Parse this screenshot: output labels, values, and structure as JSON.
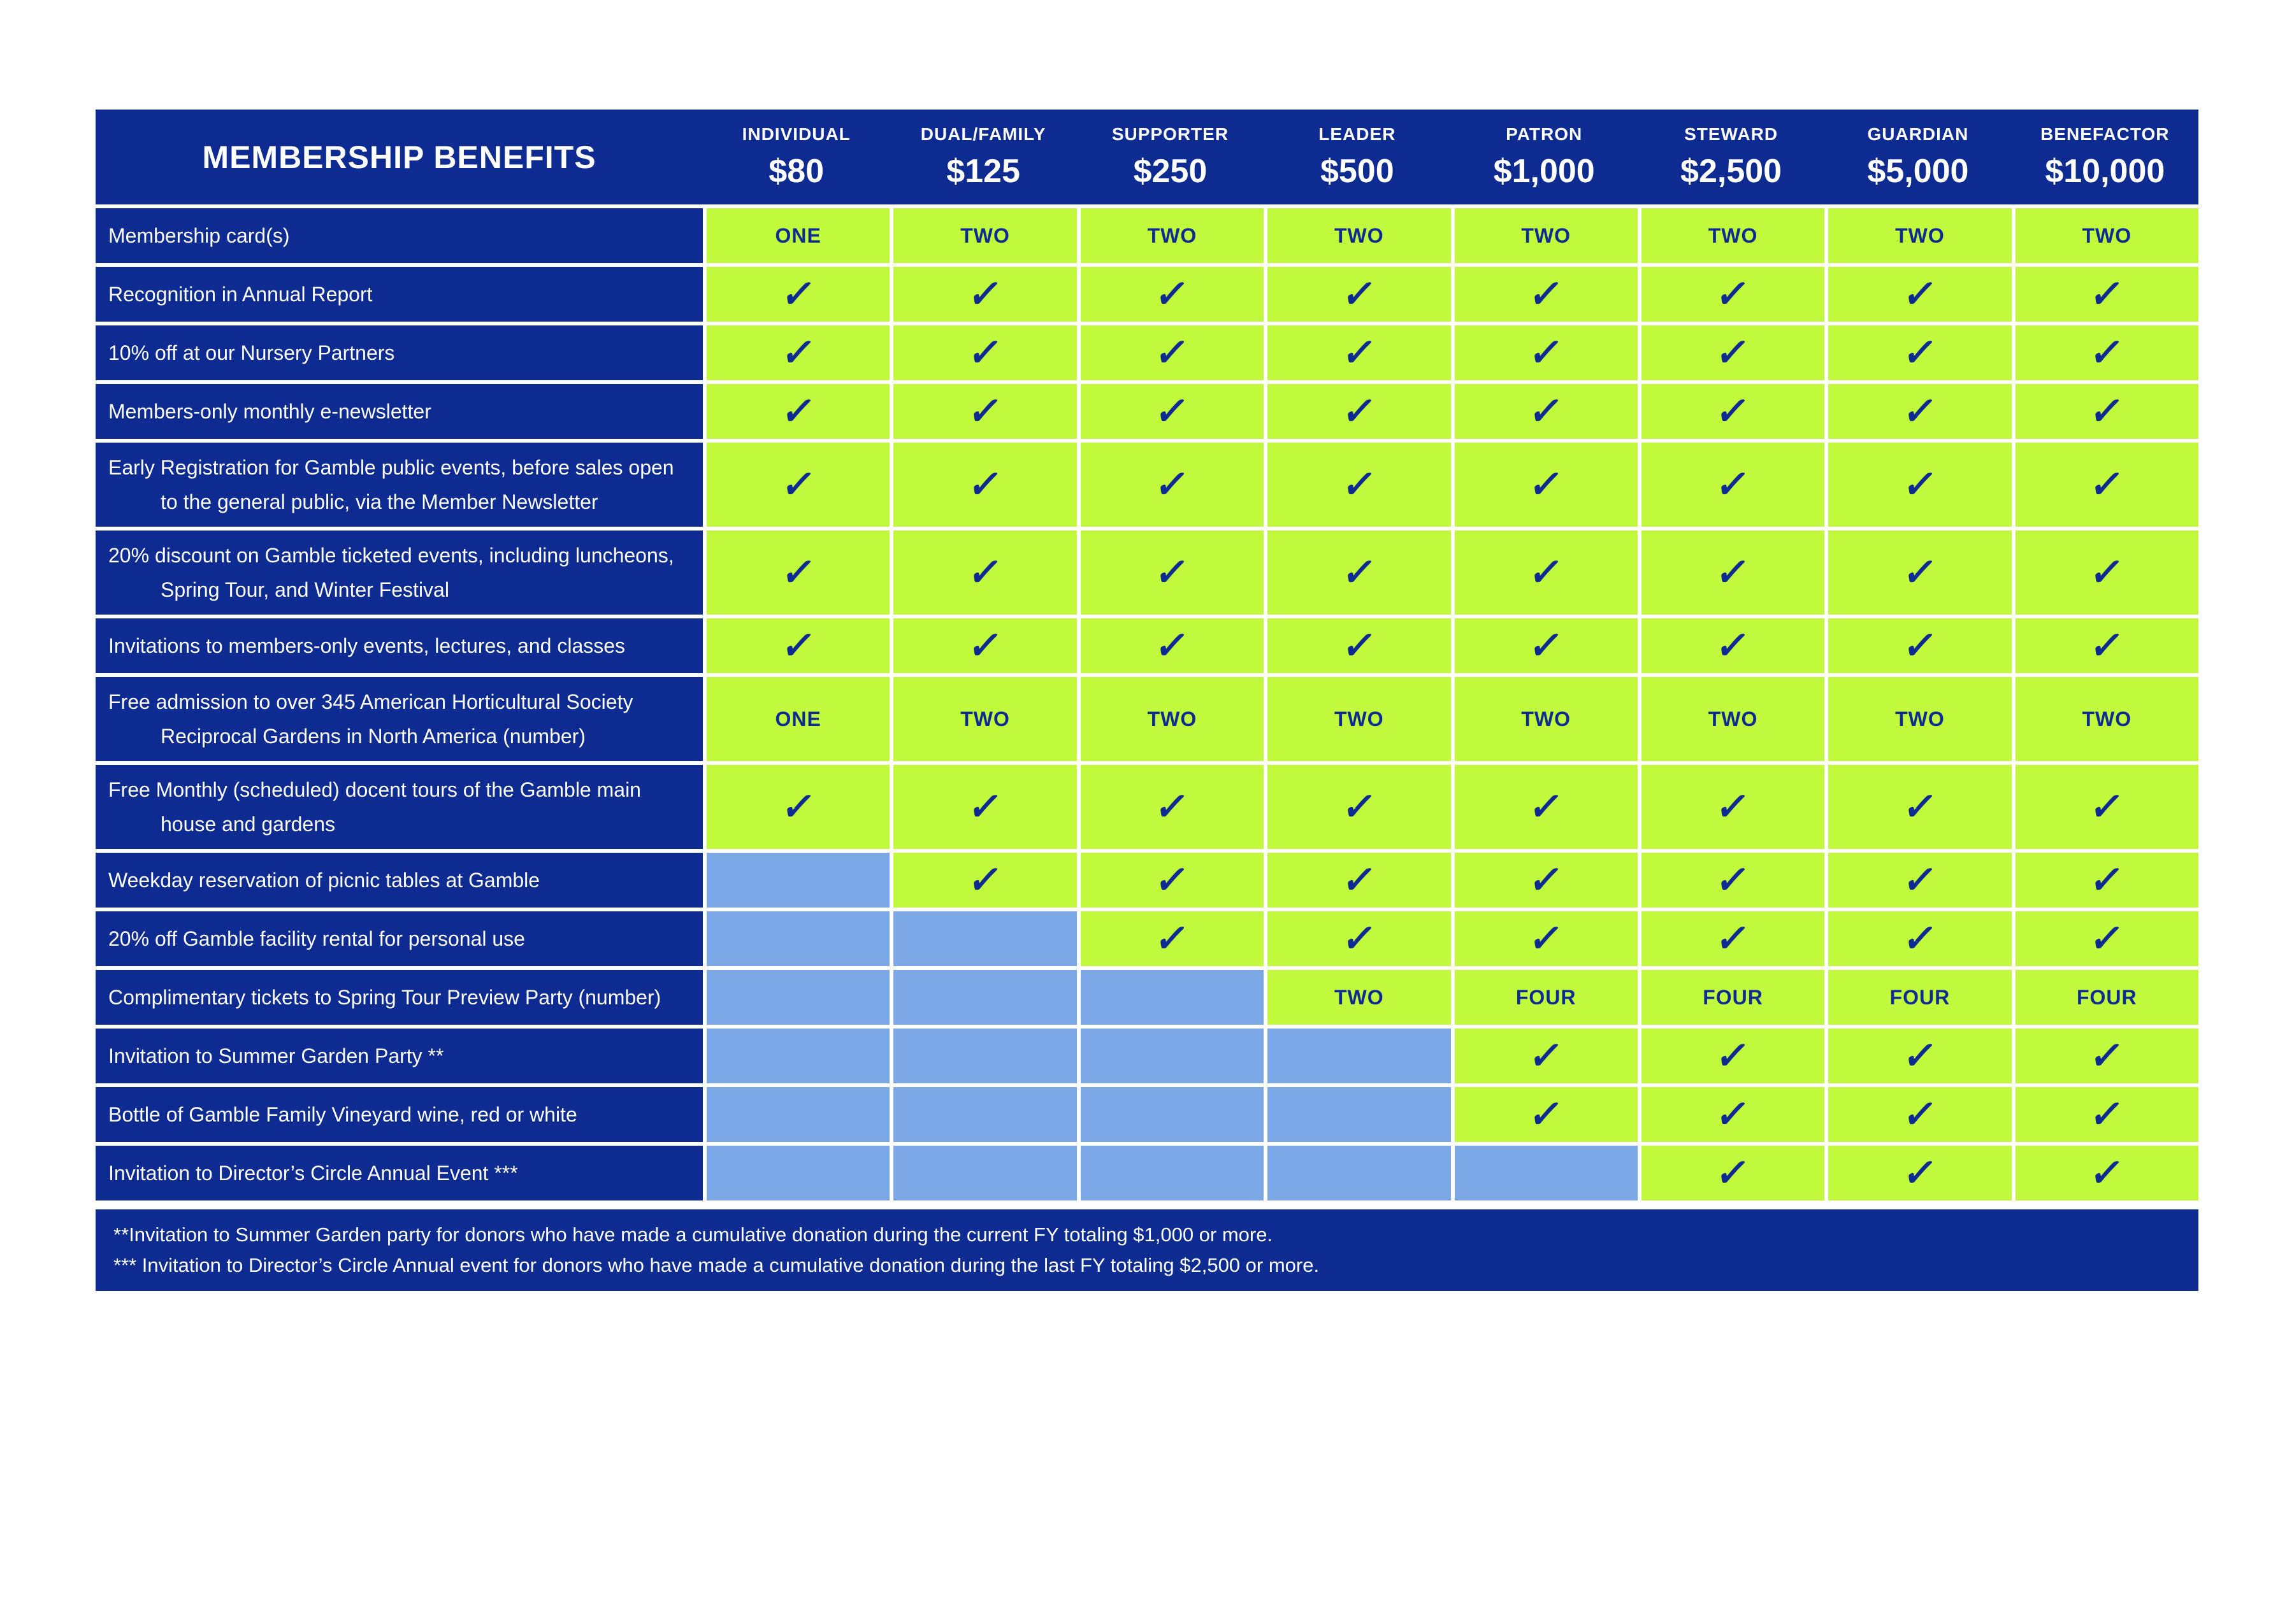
{
  "table": {
    "title": "MEMBERSHIP BENEFITS",
    "check_glyph": "✓",
    "tiers": [
      {
        "name": "INDIVIDUAL",
        "price": "$80"
      },
      {
        "name": "DUAL/FAMILY",
        "price": "$125"
      },
      {
        "name": "SUPPORTER",
        "price": "$250"
      },
      {
        "name": "LEADER",
        "price": "$500"
      },
      {
        "name": "PATRON",
        "price": "$1,000"
      },
      {
        "name": "STEWARD",
        "price": "$2,500"
      },
      {
        "name": "GUARDIAN",
        "price": "$5,000"
      },
      {
        "name": "BENEFACTOR",
        "price": "$10,000"
      }
    ],
    "rows": [
      {
        "label": "Membership card(s)",
        "cells": [
          "ONE",
          "TWO",
          "TWO",
          "TWO",
          "TWO",
          "TWO",
          "TWO",
          "TWO"
        ]
      },
      {
        "label": "Recognition in Annual Report",
        "cells": [
          "check",
          "check",
          "check",
          "check",
          "check",
          "check",
          "check",
          "check"
        ]
      },
      {
        "label": "10% off at our Nursery Partners",
        "cells": [
          "check",
          "check",
          "check",
          "check",
          "check",
          "check",
          "check",
          "check"
        ]
      },
      {
        "label": "Members-only monthly e-newsletter",
        "cells": [
          "check",
          "check",
          "check",
          "check",
          "check",
          "check",
          "check",
          "check"
        ]
      },
      {
        "label": "Early Registration for Gamble public events, before sales open to the general public, via the Member Newsletter",
        "cells": [
          "check",
          "check",
          "check",
          "check",
          "check",
          "check",
          "check",
          "check"
        ]
      },
      {
        "label": "20% discount on Gamble ticketed events, including luncheons, Spring Tour, and Winter Festival",
        "cells": [
          "check",
          "check",
          "check",
          "check",
          "check",
          "check",
          "check",
          "check"
        ]
      },
      {
        "label": "Invitations to members-only events, lectures, and classes",
        "cells": [
          "check",
          "check",
          "check",
          "check",
          "check",
          "check",
          "check",
          "check"
        ]
      },
      {
        "label": "Free admission to over 345 American Horticultural Society Reciprocal Gardens in North America (number)",
        "cells": [
          "ONE",
          "TWO",
          "TWO",
          "TWO",
          "TWO",
          "TWO",
          "TWO",
          "TWO"
        ]
      },
      {
        "label": "Free Monthly (scheduled) docent tours of the Gamble main house and gardens",
        "cells": [
          "check",
          "check",
          "check",
          "check",
          "check",
          "check",
          "check",
          "check"
        ]
      },
      {
        "label": "Weekday reservation of picnic tables at Gamble",
        "cells": [
          "none",
          "check",
          "check",
          "check",
          "check",
          "check",
          "check",
          "check"
        ]
      },
      {
        "label": "20% off Gamble facility rental for personal use",
        "cells": [
          "none",
          "none",
          "check",
          "check",
          "check",
          "check",
          "check",
          "check"
        ]
      },
      {
        "label": "Complimentary tickets to Spring Tour Preview Party (number)",
        "cells": [
          "none",
          "none",
          "none",
          "TWO",
          "FOUR",
          "FOUR",
          "FOUR",
          "FOUR"
        ]
      },
      {
        "label": "Invitation to Summer Garden Party **",
        "cells": [
          "none",
          "none",
          "none",
          "none",
          "check",
          "check",
          "check",
          "check"
        ]
      },
      {
        "label": "Bottle of Gamble Family Vineyard wine, red or white",
        "cells": [
          "none",
          "none",
          "none",
          "none",
          "check",
          "check",
          "check",
          "check"
        ]
      },
      {
        "label": "Invitation to Director’s Circle Annual Event ***",
        "cells": [
          "none",
          "none",
          "none",
          "none",
          "none",
          "check",
          "check",
          "check"
        ]
      }
    ],
    "footnotes": [
      "**Invitation to Summer Garden party for donors who have made a cumulative donation during the current FY totaling $1,000 or more.",
      "*** Invitation to Director’s Circle Annual event for donors who have made a cumulative donation during the last FY totaling $2,500 or more."
    ],
    "colors": {
      "navy": "#0d2b91",
      "green": "#c1f93d",
      "light_blue": "#7ba7e7",
      "text_on_green": "#0d2b91"
    }
  }
}
